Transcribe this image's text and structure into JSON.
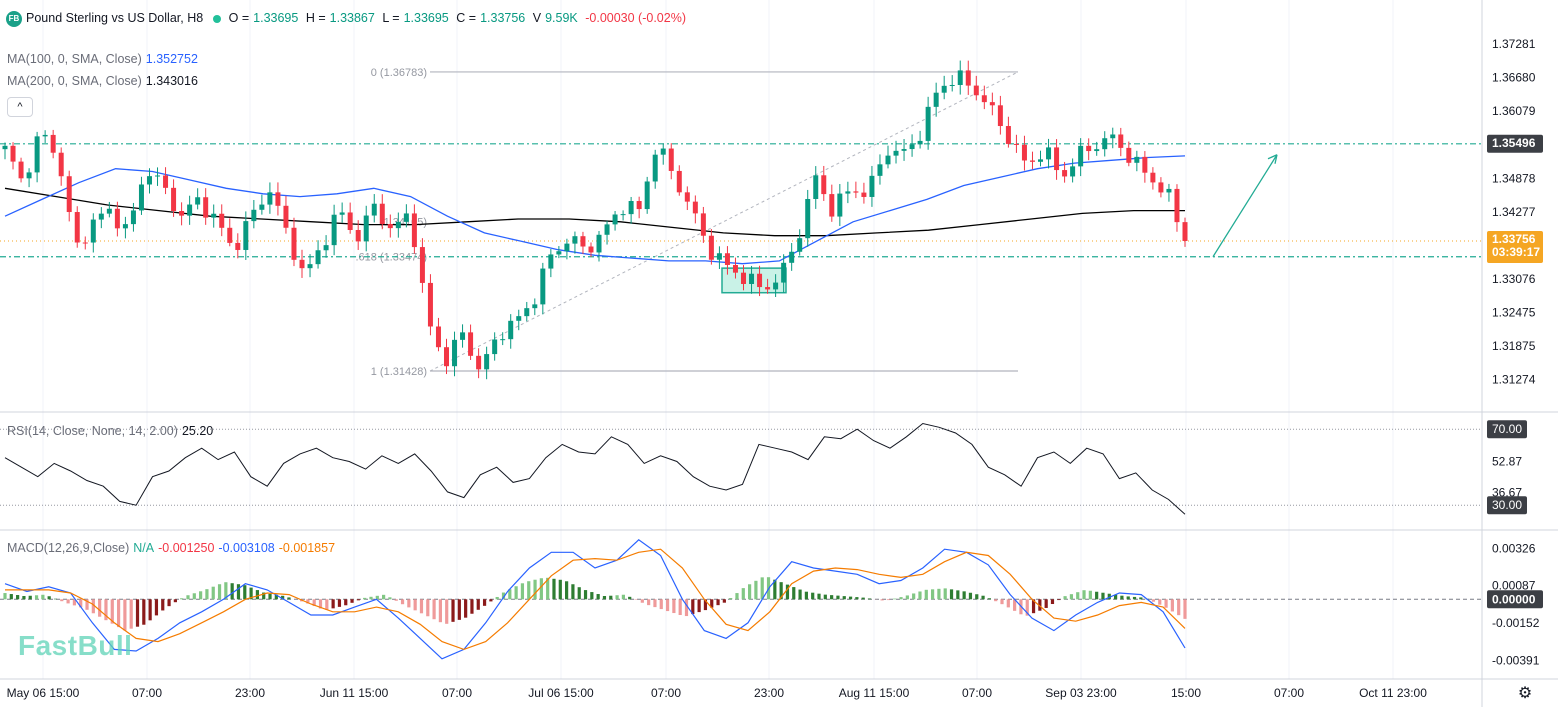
{
  "header": {
    "logo": "FB",
    "symbol": "Pound Sterling vs US Dollar, H8",
    "open_label": "O =",
    "open": "1.33695",
    "high_label": "H =",
    "high": "1.33867",
    "low_label": "L =",
    "low": "1.33695",
    "close_label": "C =",
    "close": "1.33756",
    "volume_label": "V",
    "volume": "9.59K",
    "change": "-0.00030 (-0.02%)"
  },
  "ma100": {
    "label": "MA(100, 0, SMA, Close)",
    "value": "1.352752",
    "color": "#2962ff"
  },
  "ma200": {
    "label": "MA(200, 0, SMA, Close)",
    "value": "1.343016",
    "color": "#000000"
  },
  "collapse_button": "^",
  "rsi_legend": {
    "label": "RSI(14, Close, None, 14, 2.00)",
    "value": "25.20"
  },
  "macd_legend": {
    "label": "MACD(12,26,9,Close)",
    "na": "N/A",
    "hist": "-0.001250",
    "macd": "-0.003108",
    "signal": "-0.001857"
  },
  "watermark": "FastBull",
  "settings_icon": "gear-icon",
  "colors": {
    "up": "#089981",
    "down": "#f23645",
    "accent": "#22ab94",
    "ma100": "#2962ff",
    "ma200": "#000000",
    "signal": "#f57c00"
  },
  "chart_data": [
    {
      "type": "candlestick",
      "title": "Pound Sterling vs US Dollar, H8",
      "x_ticks": [
        "May 06 15:00",
        "07:00",
        "23:00",
        "Jun 11 15:00",
        "07:00",
        "Jul 06 15:00",
        "07:00",
        "23:00",
        "Aug 11 15:00",
        "07:00",
        "Sep 03 23:00",
        "15:00",
        "07:00",
        "Oct 11 23:00"
      ],
      "y_ticks": [
        "1.37281",
        "1.36680",
        "1.36079",
        "1.34878",
        "1.34277",
        "1.33076",
        "1.32475",
        "1.31875",
        "1.31274"
      ],
      "ylim": [
        1.3073,
        1.3782
      ],
      "highlighted_labels": [
        {
          "value": "1.35496",
          "kind": "horizontal-line"
        },
        {
          "value": "1.33756",
          "countdown": "03:39:17",
          "kind": "last-price"
        }
      ],
      "fibonacci": [
        {
          "label": "0 (1.36783)",
          "value": 1.36783
        },
        {
          "label": ".618 (1.33474)",
          "value": 1.33474
        },
        {
          "label": "(1.34105)",
          "value": 1.34105
        },
        {
          "label": "1 (1.31428)",
          "value": 1.31428
        }
      ],
      "horizontal_lines": [
        1.35496,
        1.33474
      ],
      "zone": {
        "from": 1.3283,
        "to": 1.3327
      },
      "close_path": [
        1.354,
        1.348,
        1.357,
        1.353,
        1.336,
        1.341,
        1.343,
        1.339,
        1.351,
        1.347,
        1.342,
        1.345,
        1.341,
        1.336,
        1.342,
        1.347,
        1.339,
        1.331,
        1.337,
        1.343,
        1.338,
        1.344,
        1.339,
        1.343,
        1.323,
        1.316,
        1.321,
        1.314,
        1.321,
        1.323,
        1.327,
        1.335,
        1.338,
        1.336,
        1.339,
        1.344,
        1.343,
        1.355,
        1.349,
        1.343,
        1.336,
        1.333,
        1.331,
        1.329,
        1.331,
        1.338,
        1.349,
        1.343,
        1.347,
        1.346,
        1.354,
        1.353,
        1.357,
        1.365,
        1.367,
        1.365,
        1.361,
        1.356,
        1.351,
        1.354,
        1.349,
        1.353,
        1.355,
        1.356,
        1.352,
        1.349,
        1.346,
        1.33756
      ],
      "ma100_path": [
        1.342,
        1.345,
        1.348,
        1.3505,
        1.35,
        1.3485,
        1.347,
        1.346,
        1.3455,
        1.346,
        1.347,
        1.3455,
        1.342,
        1.339,
        1.3375,
        1.336,
        1.335,
        1.3345,
        1.334,
        1.334,
        1.3335,
        1.334,
        1.3375,
        1.341,
        1.343,
        1.345,
        1.3475,
        1.349,
        1.3505,
        1.3515,
        1.352,
        1.3525,
        1.3528
      ],
      "ma200_path": [
        1.347,
        1.3455,
        1.344,
        1.343,
        1.342,
        1.3415,
        1.341,
        1.3405,
        1.3405,
        1.341,
        1.3415,
        1.3415,
        1.341,
        1.34,
        1.339,
        1.3385,
        1.3385,
        1.339,
        1.3395,
        1.3405,
        1.3415,
        1.3425,
        1.343,
        1.343
      ],
      "target_arrow": {
        "from": 1.33474,
        "to": 1.353
      }
    },
    {
      "type": "line",
      "name": "RSI",
      "y_ticks": [
        "70.00",
        "52.87",
        "36.67",
        "30.00"
      ],
      "ylim": [
        18,
        78
      ],
      "levels": [
        70,
        30
      ],
      "values": [
        55,
        50,
        45,
        52,
        48,
        43,
        40,
        32,
        30,
        45,
        48,
        55,
        60,
        54,
        58,
        45,
        40,
        52,
        57,
        60,
        55,
        53,
        49,
        56,
        52,
        57,
        48,
        37,
        34,
        46,
        50,
        42,
        44,
        55,
        62,
        58,
        57,
        66,
        62,
        52,
        56,
        53,
        45,
        40,
        38,
        41,
        62,
        60,
        58,
        54,
        66,
        65,
        70,
        64,
        60,
        66,
        73,
        71,
        68,
        62,
        50,
        46,
        40,
        55,
        58,
        52,
        60,
        57,
        44,
        47,
        38,
        33,
        25.2
      ]
    },
    {
      "type": "bar",
      "name": "MACD",
      "y_ticks": [
        "0.00326",
        "0.00087",
        "0.00000",
        "-0.00152",
        "-0.00391"
      ],
      "ylim": [
        -0.0049,
        0.0043
      ],
      "histogram": [
        0.0004,
        0.0002,
        0.0003,
        -0.0002,
        -0.0006,
        -0.0013,
        -0.002,
        -0.0016,
        -0.0006,
        0.0002,
        0.0006,
        0.0011,
        0.0009,
        0.0004,
        0.0002,
        -0.0002,
        -0.0007,
        -0.0004,
        0.0001,
        0.0003,
        -0.0004,
        -0.001,
        -0.0016,
        -0.0012,
        -0.0004,
        0.0005,
        0.0011,
        0.0014,
        0.0012,
        0.0006,
        0.0002,
        0.0003,
        -0.0003,
        -0.0007,
        -0.0011,
        -0.0007,
        -0.0002,
        0.0008,
        0.0015,
        0.001,
        0.0005,
        0.0003,
        0.0002,
        0.0001,
        -0.0001,
        0.0002,
        0.0006,
        0.0007,
        0.0005,
        0.0002,
        -0.0004,
        -0.0011,
        -0.0006,
        0.0002,
        0.0006,
        0.0004,
        0.0002,
        0.0001,
        -0.0005,
        -0.00125
      ],
      "macd": [
        0.001,
        0.0005,
        0.0008,
        0.0004,
        -0.0015,
        -0.0032,
        -0.0033,
        -0.0025,
        -0.0015,
        -0.0008,
        0.0,
        0.001,
        0.0006,
        -0.0002,
        -0.001,
        -0.001,
        -0.0005,
        0.0,
        -0.0012,
        -0.0025,
        -0.0038,
        -0.0032,
        -0.0015,
        0.0005,
        0.002,
        0.003,
        0.003,
        0.002,
        0.0025,
        0.0038,
        0.0028,
        0.0,
        -0.002,
        -0.0025,
        -0.0015,
        0.0008,
        0.0024,
        0.002,
        0.0018,
        0.0016,
        0.001,
        0.0012,
        0.002,
        0.0032,
        0.003,
        0.0022,
        0.0003,
        -0.0012,
        -0.002,
        -0.001,
        -0.0002,
        0.0004,
        0.0003,
        -0.0008,
        -0.003108
      ],
      "signal": [
        0.0006,
        0.0006,
        0.0006,
        0.0004,
        -0.0003,
        -0.0015,
        -0.0025,
        -0.0027,
        -0.0022,
        -0.0015,
        -0.0008,
        0.0,
        0.0004,
        0.0003,
        -0.0003,
        -0.0008,
        -0.0008,
        -0.0005,
        -0.0008,
        -0.0016,
        -0.0027,
        -0.0032,
        -0.0027,
        -0.0015,
        0.0,
        0.0015,
        0.0025,
        0.0026,
        0.0025,
        0.003,
        0.0032,
        0.002,
        0.0,
        -0.0016,
        -0.002,
        -0.0008,
        0.001,
        0.0018,
        0.002,
        0.0019,
        0.0016,
        0.0014,
        0.0016,
        0.0024,
        0.003,
        0.0028,
        0.0016,
        0.0,
        -0.0012,
        -0.0014,
        -0.001,
        -0.0004,
        -0.0002,
        -0.0005,
        -0.001857
      ]
    }
  ]
}
